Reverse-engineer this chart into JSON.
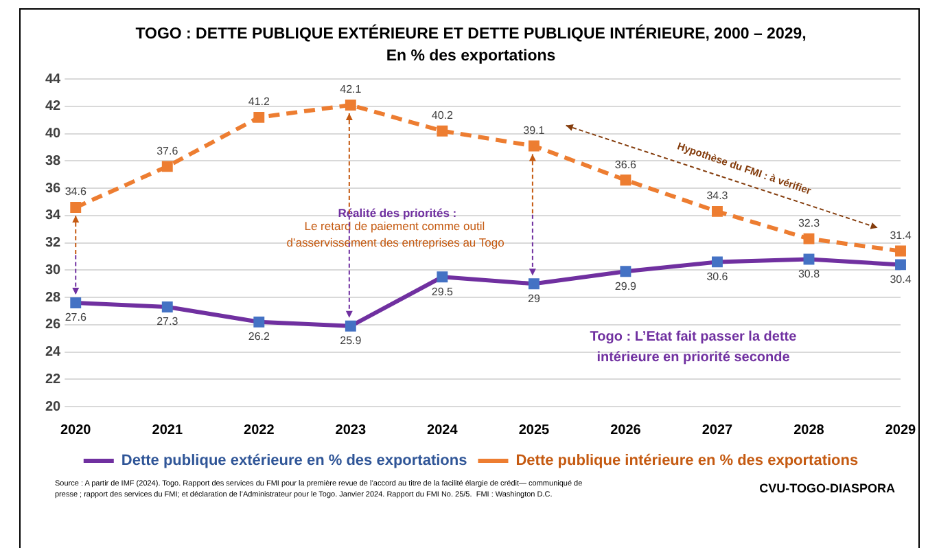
{
  "chart_data": {
    "type": "line",
    "title": "TOGO : DETTE PUBLIQUE EXTÉRIEURE ET DETTE PUBLIQUE INTÉRIEURE, 2000 – 2029,",
    "subtitle": "En % des exportations",
    "categories": [
      "2020",
      "2021",
      "2022",
      "2023",
      "2024",
      "2025",
      "2026",
      "2027",
      "2028",
      "2029"
    ],
    "series": [
      {
        "name": "Dette publique extérieure en % des exportations",
        "color": "#7030a0",
        "line_style": "solid",
        "values": [
          27.6,
          27.3,
          26.2,
          25.9,
          29.5,
          29,
          29.9,
          30.6,
          30.8,
          30.4
        ]
      },
      {
        "name": "Dette publique intérieure en % des exportations",
        "color": "#ed7d31",
        "line_style": "dashed",
        "values": [
          34.6,
          37.6,
          41.2,
          42.1,
          40.2,
          39.1,
          36.6,
          34.3,
          32.3,
          31.4
        ]
      }
    ],
    "ylim": [
      20,
      44
    ],
    "yticks": [
      20,
      22,
      24,
      26,
      28,
      30,
      32,
      34,
      36,
      38,
      40,
      42,
      44
    ],
    "grid": "y",
    "legend": "bottom",
    "marker": "square",
    "data_labels": true,
    "annotations": [
      {
        "text": "Réalité des priorités :",
        "x": "2023",
        "y": 42.1
      },
      {
        "text": "Le retard de paiement comme outil",
        "x": "2023",
        "y": 25.9
      },
      "d’asservissement des entreprises au Togo",
      "Hypothèse du FMI : à vérifier",
      "Togo : L’Etat fait passer la dette",
      "intérieure en priorité seconde",
      "Source : A partir de IMF (2024). Togo. Rapport des services du FMI pour la première revue de l’accord au titre de la facilité élargie de crédit— communiqué de",
      "presse ; rapport des services du FMI; et déclaration de l’Administrateur pour le Togo. Janvier 2024. Rapport du FMI No. 25/5.  FMI : Washington D.C.",
      "CVU-TOGO-DIASPORA"
    ]
  }
}
